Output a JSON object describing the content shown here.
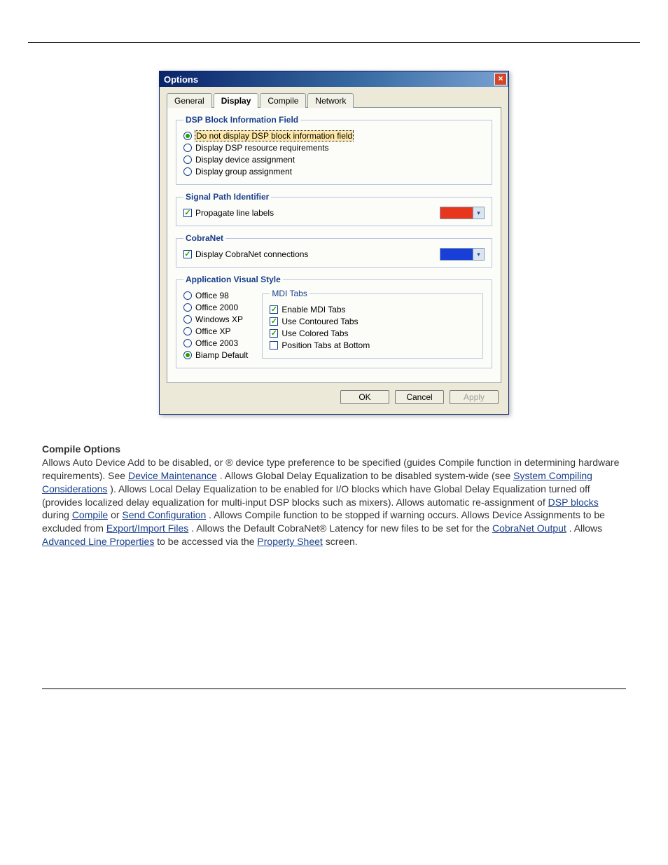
{
  "dialog": {
    "title": "Options",
    "tabs": [
      "General",
      "Display",
      "Compile",
      "Network"
    ],
    "active_tab": 1,
    "groups": {
      "dsp": {
        "legend": "DSP Block Information Field",
        "options": [
          "Do not display DSP block information field",
          "Display DSP resource requirements",
          "Display device assignment",
          "Display group assignment"
        ],
        "selected_index": 0
      },
      "signal": {
        "legend": "Signal Path Identifier",
        "checkbox_label": "Propagate line labels",
        "checkbox_checked": true,
        "color": "#e8361e"
      },
      "cobranet": {
        "legend": "CobraNet",
        "checkbox_label": "Display CobraNet connections",
        "checkbox_checked": true,
        "color": "#1a3fd8"
      },
      "visual": {
        "legend": "Application Visual Style",
        "styles": [
          "Office 98",
          "Office 2000",
          "Windows XP",
          "Office XP",
          "Office 2003",
          "Biamp Default"
        ],
        "selected_index": 5,
        "mdi": {
          "legend": "MDI Tabs",
          "enable": {
            "label": "Enable MDI Tabs",
            "checked": true
          },
          "contoured": {
            "label": "Use Contoured Tabs",
            "checked": true
          },
          "colored": {
            "label": "Use Colored Tabs",
            "checked": true
          },
          "bottom": {
            "label": "Position Tabs at Bottom",
            "checked": false
          }
        }
      }
    },
    "buttons": {
      "ok": "OK",
      "cancel": "Cancel",
      "apply": "Apply"
    }
  },
  "para": {
    "heading": "Compile Options",
    "t1": "Allows Auto Device Add to be disabled, or ",
    "t2": "® device type preference to be specified (guides Compile function in determining hardware requirements). See ",
    "link1": "Device Maintenance",
    "t3": ". Allows Global Delay Equalization to be disabled system-wide (see ",
    "link2": "System Compiling Considerations",
    "t4": "). Allows Local Delay Equalization to be enabled for I/O blocks which have Global Delay Equalization turned off (provides localized delay equalization for multi-input DSP blocks such as mixers). Allows automatic re-assignment of ",
    "link3": "DSP blocks",
    "t5": " during ",
    "link4": "Compile",
    "t6": " or ",
    "link5": "Send Configuration",
    "t7": ". Allows Compile function to be stopped if warning occurs. Allows Device Assignments to be excluded from ",
    "link6": "Export/Import Files",
    "t8": ". Allows the Default CobraNet® Latency for new files to be set for the ",
    "link7": "CobraNet Output",
    "t9": ". Allows ",
    "link8": "Advanced Line Properties",
    "t10": " to be accessed via the ",
    "link9": "Property Sheet",
    "t11": " screen."
  }
}
